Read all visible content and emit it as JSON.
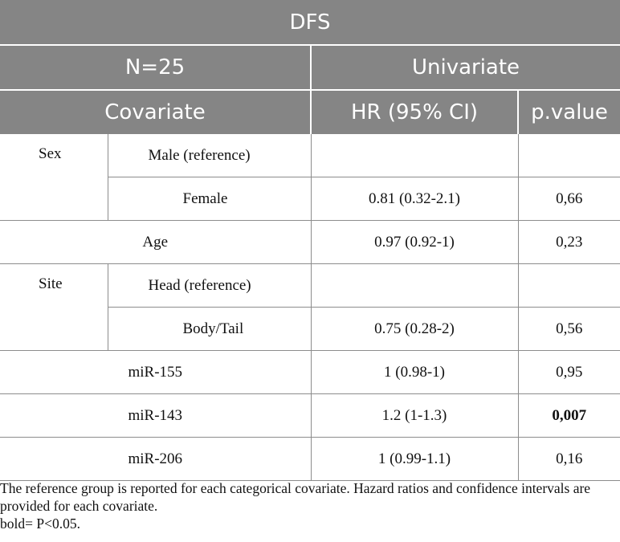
{
  "table": {
    "title": "DFS",
    "n_label": "N=25",
    "univariate_label": "Univariate",
    "covariate_label": "Covariate",
    "hr_label": "HR (95% CI)",
    "pvalue_label": "p.value",
    "rows": {
      "sex": "Sex",
      "male": "Male (reference)",
      "female": "Female",
      "female_hr": "0.81 (0.32-2.1)",
      "female_p": "0,66",
      "age": "Age",
      "age_hr": "0.97 (0.92-1)",
      "age_p": "0,23",
      "site": "Site",
      "head": "Head (reference)",
      "body_tail": "Body/Tail",
      "body_tail_hr": "0.75 (0.28-2)",
      "body_tail_p": "0,56",
      "mir155": "miR-155",
      "mir155_hr": "1 (0.98-1)",
      "mir155_p": "0,95",
      "mir143": "miR-143",
      "mir143_hr": "1.2 (1-1.3)",
      "mir143_p": "0,007",
      "mir206": "miR-206",
      "mir206_hr": "1 (0.99-1.1)",
      "mir206_p": "0,16"
    }
  },
  "footnote": {
    "line1": "The reference group is reported for each categorical covariate. Hazard ratios and confidence intervals are provided for each covariate.",
    "line2": "bold= P<0.05."
  }
}
